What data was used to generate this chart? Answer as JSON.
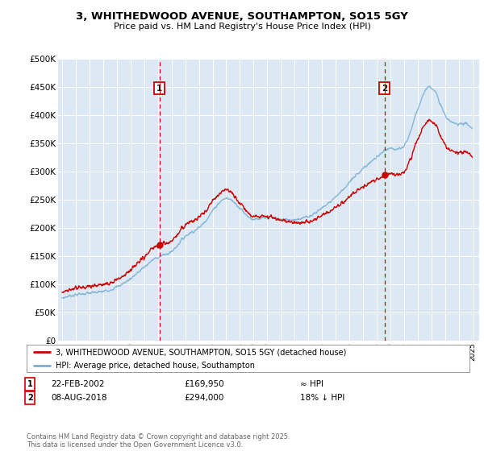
{
  "title": "3, WHITHEDWOOD AVENUE, SOUTHAMPTON, SO15 5GY",
  "subtitle": "Price paid vs. HM Land Registry's House Price Index (HPI)",
  "plot_bg_color": "#dce9f5",
  "ylabel_ticks": [
    "£0",
    "£50K",
    "£100K",
    "£150K",
    "£200K",
    "£250K",
    "£300K",
    "£350K",
    "£400K",
    "£450K",
    "£500K"
  ],
  "ytick_values": [
    0,
    50000,
    100000,
    150000,
    200000,
    250000,
    300000,
    350000,
    400000,
    450000,
    500000
  ],
  "xmin": 1994.7,
  "xmax": 2025.5,
  "ymin": 0,
  "ymax": 500000,
  "sale1_year": 2002.13,
  "sale1_price": 169950,
  "sale2_year": 2018.58,
  "sale2_price": 294000,
  "legend_line1_label": "3, WHITHEDWOOD AVENUE, SOUTHAMPTON, SO15 5GY (detached house)",
  "legend_line2_label": "HPI: Average price, detached house, Southampton",
  "annotation1": {
    "num": "1",
    "date": "22-FEB-2002",
    "price": "£169,950",
    "hpi": "≈ HPI"
  },
  "annotation2": {
    "num": "2",
    "date": "08-AUG-2018",
    "price": "£294,000",
    "hpi": "18% ↓ HPI"
  },
  "footnote": "Contains HM Land Registry data © Crown copyright and database right 2025.\nThis data is licensed under the Open Government Licence v3.0.",
  "line_color_red": "#cc0000",
  "line_color_blue": "#7ab0d4",
  "dashed_line_color": "#cc0000",
  "marker_color": "#cc0000"
}
